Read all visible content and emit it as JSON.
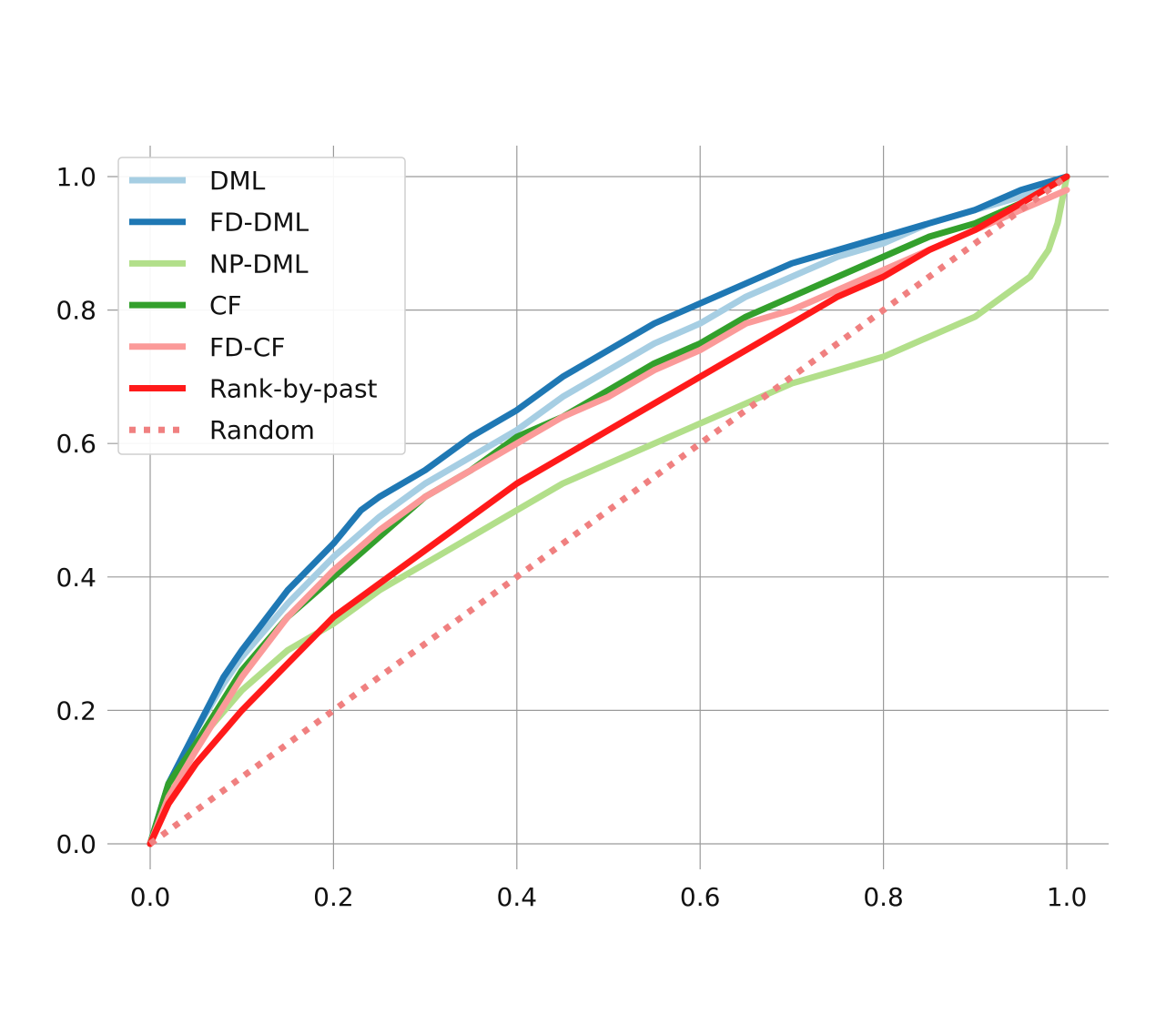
{
  "chart_data": {
    "type": "line",
    "title": "",
    "xlabel": "",
    "ylabel": "",
    "xlim": [
      0.0,
      1.0
    ],
    "ylim": [
      0.0,
      1.0
    ],
    "grid": true,
    "legend_position": "top-left",
    "x_ticks": [
      "0.0",
      "0.2",
      "0.4",
      "0.6",
      "0.8",
      "1.0"
    ],
    "y_ticks": [
      "0.0",
      "0.2",
      "0.4",
      "0.6",
      "0.8",
      "1.0"
    ],
    "x_tick_values": [
      0.0,
      0.2,
      0.4,
      0.6,
      0.8,
      1.0
    ],
    "y_tick_values": [
      0.0,
      0.2,
      0.4,
      0.6,
      0.8,
      1.0
    ],
    "series": [
      {
        "name": "DML",
        "color": "#a6cee3",
        "style": "solid",
        "x": [
          0,
          0.02,
          0.05,
          0.08,
          0.1,
          0.15,
          0.2,
          0.25,
          0.3,
          0.35,
          0.4,
          0.45,
          0.5,
          0.55,
          0.6,
          0.65,
          0.7,
          0.75,
          0.8,
          0.85,
          0.9,
          0.95,
          1.0
        ],
        "y": [
          0,
          0.09,
          0.17,
          0.24,
          0.28,
          0.36,
          0.43,
          0.49,
          0.54,
          0.58,
          0.62,
          0.67,
          0.71,
          0.75,
          0.78,
          0.82,
          0.85,
          0.88,
          0.9,
          0.93,
          0.95,
          0.97,
          1.0
        ]
      },
      {
        "name": "FD-DML",
        "color": "#1f78b4",
        "style": "solid",
        "x": [
          0,
          0.02,
          0.05,
          0.08,
          0.1,
          0.15,
          0.2,
          0.23,
          0.25,
          0.3,
          0.35,
          0.4,
          0.45,
          0.5,
          0.55,
          0.6,
          0.65,
          0.7,
          0.75,
          0.8,
          0.85,
          0.9,
          0.95,
          1.0
        ],
        "y": [
          0,
          0.09,
          0.17,
          0.25,
          0.29,
          0.38,
          0.45,
          0.5,
          0.52,
          0.56,
          0.61,
          0.65,
          0.7,
          0.74,
          0.78,
          0.81,
          0.84,
          0.87,
          0.89,
          0.91,
          0.93,
          0.95,
          0.98,
          1.0
        ]
      },
      {
        "name": "NP-DML",
        "color": "#b2df8a",
        "style": "solid",
        "x": [
          0,
          0.02,
          0.05,
          0.1,
          0.15,
          0.2,
          0.25,
          0.3,
          0.35,
          0.4,
          0.45,
          0.5,
          0.55,
          0.6,
          0.65,
          0.7,
          0.75,
          0.8,
          0.85,
          0.9,
          0.93,
          0.96,
          0.98,
          0.99,
          1.0
        ],
        "y": [
          0,
          0.08,
          0.15,
          0.23,
          0.29,
          0.33,
          0.38,
          0.42,
          0.46,
          0.5,
          0.54,
          0.57,
          0.6,
          0.63,
          0.66,
          0.69,
          0.71,
          0.73,
          0.76,
          0.79,
          0.82,
          0.85,
          0.89,
          0.93,
          1.0
        ]
      },
      {
        "name": "CF",
        "color": "#33a02c",
        "style": "solid",
        "x": [
          0,
          0.02,
          0.05,
          0.1,
          0.15,
          0.2,
          0.25,
          0.3,
          0.35,
          0.4,
          0.45,
          0.5,
          0.55,
          0.6,
          0.65,
          0.7,
          0.75,
          0.8,
          0.85,
          0.9,
          0.95,
          1.0
        ],
        "y": [
          0,
          0.09,
          0.15,
          0.26,
          0.34,
          0.4,
          0.46,
          0.52,
          0.56,
          0.61,
          0.64,
          0.68,
          0.72,
          0.75,
          0.79,
          0.82,
          0.85,
          0.88,
          0.91,
          0.93,
          0.96,
          1.0
        ]
      },
      {
        "name": "FD-CF",
        "color": "#fb9a99",
        "style": "solid",
        "x": [
          0,
          0.02,
          0.05,
          0.1,
          0.15,
          0.2,
          0.25,
          0.3,
          0.35,
          0.4,
          0.45,
          0.5,
          0.55,
          0.6,
          0.65,
          0.7,
          0.75,
          0.8,
          0.85,
          0.9,
          0.95,
          1.0
        ],
        "y": [
          0,
          0.07,
          0.14,
          0.25,
          0.34,
          0.41,
          0.47,
          0.52,
          0.56,
          0.6,
          0.64,
          0.67,
          0.71,
          0.74,
          0.78,
          0.8,
          0.83,
          0.86,
          0.89,
          0.92,
          0.95,
          0.98
        ]
      },
      {
        "name": "Rank-by-past",
        "color": "#ff1a1a",
        "style": "solid",
        "x": [
          0,
          0.02,
          0.05,
          0.1,
          0.15,
          0.2,
          0.25,
          0.3,
          0.35,
          0.4,
          0.45,
          0.5,
          0.55,
          0.6,
          0.65,
          0.7,
          0.75,
          0.8,
          0.85,
          0.9,
          0.95,
          1.0
        ],
        "y": [
          0,
          0.06,
          0.12,
          0.2,
          0.27,
          0.34,
          0.39,
          0.44,
          0.49,
          0.54,
          0.58,
          0.62,
          0.66,
          0.7,
          0.74,
          0.78,
          0.82,
          0.85,
          0.89,
          0.92,
          0.96,
          1.0
        ]
      },
      {
        "name": "Random",
        "color": "#f08080",
        "style": "dotted",
        "x": [
          0,
          1.0
        ],
        "y": [
          0,
          1.0
        ]
      }
    ]
  }
}
